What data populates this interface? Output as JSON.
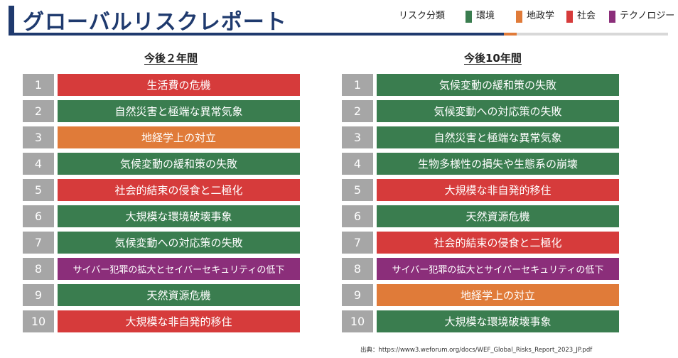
{
  "title": "グローバルリスクレポート",
  "legend": {
    "title": "リスク分類",
    "items": [
      {
        "label": "環境",
        "color": "#3a7d4f"
      },
      {
        "label": "地政学",
        "color": "#e07b39"
      },
      {
        "label": "社会",
        "color": "#d63b3b"
      },
      {
        "label": "テクノロジー",
        "color": "#8b2e7a"
      }
    ]
  },
  "left": {
    "heading": "今後２年間",
    "rows": [
      {
        "rank": "1",
        "label": "生活費の危機",
        "category": "社会"
      },
      {
        "rank": "2",
        "label": "自然災害と極端な異常気象",
        "category": "環境"
      },
      {
        "rank": "3",
        "label": "地経学上の対立",
        "category": "地政学"
      },
      {
        "rank": "4",
        "label": "気候変動の緩和策の失敗",
        "category": "環境"
      },
      {
        "rank": "5",
        "label": "社会的結束の侵食と二極化",
        "category": "社会"
      },
      {
        "rank": "6",
        "label": "大規模な環境破壊事象",
        "category": "環境"
      },
      {
        "rank": "7",
        "label": "気候変動への対応策の失敗",
        "category": "環境"
      },
      {
        "rank": "8",
        "label": "サイバー犯罪の拡大とセイバーセキュリティの低下",
        "category": "テクノロジー"
      },
      {
        "rank": "9",
        "label": "天然資源危機",
        "category": "環境"
      },
      {
        "rank": "10",
        "label": "大規模な非自発的移住",
        "category": "社会"
      }
    ]
  },
  "right": {
    "heading": "今後10年間",
    "rows": [
      {
        "rank": "1",
        "label": "気候変動の緩和策の失敗",
        "category": "環境"
      },
      {
        "rank": "2",
        "label": "気候変動への対応策の失敗",
        "category": "環境"
      },
      {
        "rank": "3",
        "label": "自然災害と極端な異常気象",
        "category": "環境"
      },
      {
        "rank": "4",
        "label": "生物多様性の損失や生態系の崩壊",
        "category": "環境"
      },
      {
        "rank": "5",
        "label": "大規模な非自発的移住",
        "category": "社会"
      },
      {
        "rank": "6",
        "label": "天然資源危機",
        "category": "環境"
      },
      {
        "rank": "7",
        "label": "社会的結束の侵食と二極化",
        "category": "社会"
      },
      {
        "rank": "8",
        "label": "サイバー犯罪の拡大とサイバーセキュリティの低下",
        "category": "テクノロジー"
      },
      {
        "rank": "9",
        "label": "地経学上の対立",
        "category": "地政学"
      },
      {
        "rank": "10",
        "label": "大規模な環境破壊事象",
        "category": "環境"
      }
    ]
  },
  "source": "出典：https://www3.weforum.org/docs/WEF_Global_Risks_Report_2023_JP.pdf"
}
